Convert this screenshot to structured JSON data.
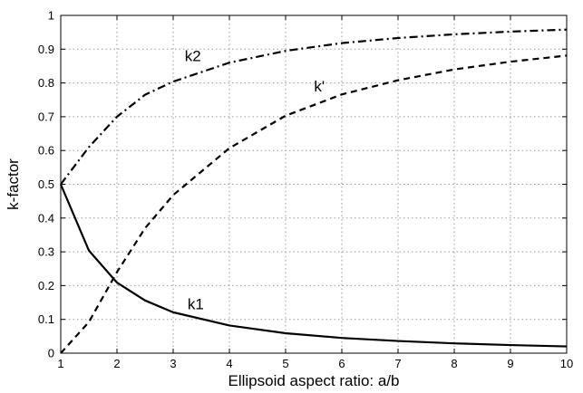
{
  "chart_data": {
    "type": "line",
    "title": "",
    "xlabel": "Ellipsoid aspect ratio: a/b",
    "ylabel": "k-factor",
    "xlim": [
      1,
      10
    ],
    "ylim": [
      0,
      1
    ],
    "xticks": [
      1,
      2,
      3,
      4,
      5,
      6,
      7,
      8,
      9,
      10
    ],
    "yticks": [
      0,
      0.1,
      0.2,
      0.3,
      0.4,
      0.5,
      0.6,
      0.7,
      0.8,
      0.9,
      1
    ],
    "xtick_labels": [
      "1",
      "2",
      "3",
      "4",
      "5",
      "6",
      "7",
      "8",
      "9",
      "10"
    ],
    "ytick_labels": [
      "0",
      "0.1",
      "0.2",
      "0.3",
      "0.4",
      "0.5",
      "0.6",
      "0.7",
      "0.8",
      "0.9",
      "1"
    ],
    "grid": true,
    "legend": "none",
    "series": [
      {
        "name": "k1",
        "style": "solid",
        "color": "#000000",
        "x": [
          1,
          1.5,
          2,
          2.5,
          3,
          4,
          5,
          6,
          7,
          8,
          9,
          10
        ],
        "y": [
          0.5,
          0.304,
          0.209,
          0.156,
          0.121,
          0.082,
          0.059,
          0.045,
          0.036,
          0.029,
          0.024,
          0.02
        ]
      },
      {
        "name": "k'",
        "style": "dashed",
        "color": "#000000",
        "x": [
          1,
          1.5,
          2,
          2.5,
          3,
          4,
          5,
          6,
          7,
          8,
          9,
          10
        ],
        "y": [
          0,
          0.092,
          0.24,
          0.37,
          0.468,
          0.607,
          0.703,
          0.766,
          0.808,
          0.84,
          0.863,
          0.881
        ]
      },
      {
        "name": "k2",
        "style": "dashdot",
        "color": "#000000",
        "x": [
          1,
          1.5,
          2,
          2.5,
          3,
          4,
          5,
          6,
          7,
          8,
          9,
          10
        ],
        "y": [
          0.5,
          0.61,
          0.7,
          0.765,
          0.804,
          0.86,
          0.895,
          0.918,
          0.933,
          0.944,
          0.952,
          0.958
        ]
      }
    ],
    "annotations": [
      {
        "text": "k2",
        "x": 3.35,
        "y": 0.865
      },
      {
        "text": "k'",
        "x": 5.6,
        "y": 0.775
      },
      {
        "text": "k1",
        "x": 3.4,
        "y": 0.13
      }
    ]
  }
}
